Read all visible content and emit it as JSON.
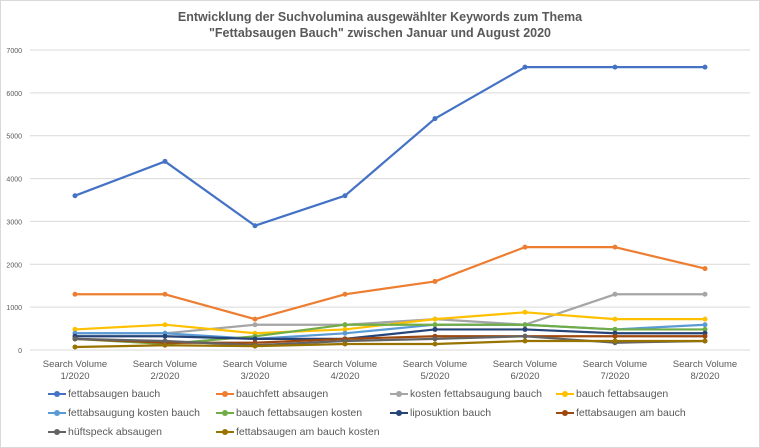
{
  "chart_data": {
    "type": "line",
    "title": "Entwicklung der Suchvolumina ausgewählter Keywords zum Thema",
    "subtitle": "\"Fettabsaugen Bauch\" zwischen Januar und August 2020",
    "xlabel": "",
    "ylabel": "",
    "ylim": [
      0,
      7000
    ],
    "yticks": [
      "0",
      "1000",
      "2000",
      "3000",
      "4000",
      "5000",
      "6000",
      "7000"
    ],
    "grid": true,
    "legend_position": "bottom",
    "categories": [
      [
        "Search Volume",
        "1/2020"
      ],
      [
        "Search Volume",
        "2/2020"
      ],
      [
        "Search Volume",
        "3/2020"
      ],
      [
        "Search Volume",
        "4/2020"
      ],
      [
        "Search Volume",
        "5/2020"
      ],
      [
        "Search Volume",
        "6/2020"
      ],
      [
        "Search Volume",
        "7/2020"
      ],
      [
        "Search Volume",
        "8/2020"
      ]
    ],
    "series": [
      {
        "name": "fettabsaugen bauch",
        "color": "#4472c4",
        "values": [
          3600,
          4400,
          2900,
          3600,
          5400,
          6600,
          6600,
          6600
        ]
      },
      {
        "name": "bauchfett absaugen",
        "color": "#ed7d31",
        "values": [
          1300,
          1300,
          720,
          1300,
          1600,
          2400,
          2400,
          1900
        ]
      },
      {
        "name": "kosten fettabsaugung bauch",
        "color": "#a5a5a5",
        "values": [
          390,
          390,
          590,
          590,
          720,
          590,
          1300,
          1300
        ]
      },
      {
        "name": "bauch fettabsaugen",
        "color": "#ffc000",
        "values": [
          480,
          590,
          390,
          480,
          720,
          880,
          720,
          720
        ]
      },
      {
        "name": "fettabsaugung kosten bauch",
        "color": "#5b9bd5",
        "values": [
          390,
          390,
          260,
          390,
          590,
          590,
          480,
          590
        ]
      },
      {
        "name": "bauch fettabsaugen kosten",
        "color": "#70ad47",
        "values": [
          260,
          140,
          320,
          590,
          590,
          590,
          480,
          480
        ]
      },
      {
        "name": "liposuktion bauch",
        "color": "#264478",
        "values": [
          320,
          320,
          260,
          260,
          480,
          480,
          390,
          390
        ]
      },
      {
        "name": "fettabsaugen am bauch",
        "color": "#9e480e",
        "values": [
          260,
          170,
          170,
          260,
          320,
          320,
          320,
          320
        ]
      },
      {
        "name": "hüftspeck absaugen",
        "color": "#636363",
        "values": [
          260,
          210,
          110,
          210,
          260,
          320,
          170,
          210
        ]
      },
      {
        "name": "fettabsaugen am bauch kosten",
        "color": "#997300",
        "values": [
          70,
          110,
          90,
          140,
          140,
          210,
          210,
          210
        ]
      }
    ]
  }
}
